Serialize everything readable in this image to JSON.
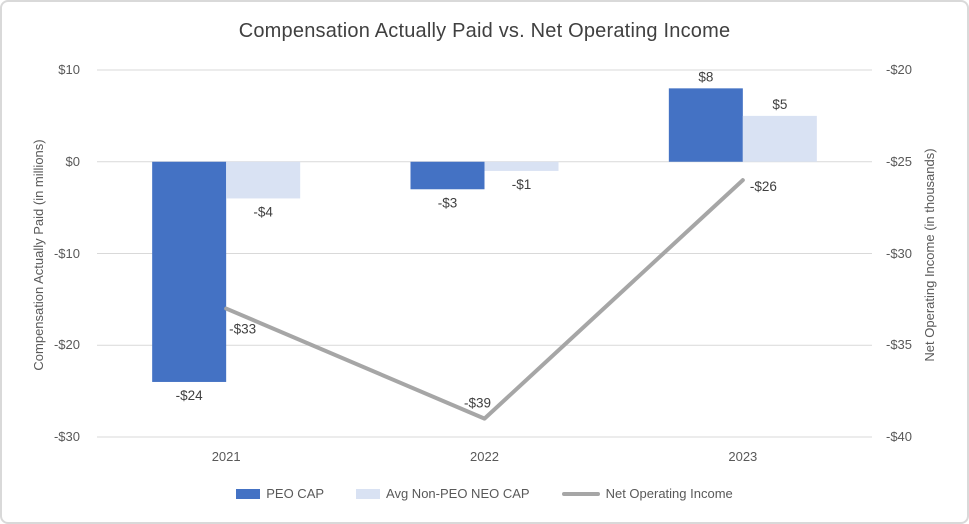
{
  "chart_data": {
    "type": "combo-bar-line",
    "title": "Compensation Actually Paid vs. Net Operating Income",
    "categories": [
      "2021",
      "2022",
      "2023"
    ],
    "bar_series": [
      {
        "name": "PEO CAP",
        "color": "#4472C4",
        "values": [
          -24,
          -3,
          8
        ],
        "labels": [
          "-$24",
          "-$3",
          "$8"
        ],
        "axis": "left"
      },
      {
        "name": "Avg Non-PEO NEO CAP",
        "color": "#D9E2F3",
        "values": [
          -4,
          -1,
          5
        ],
        "labels": [
          "-$4",
          "-$1",
          "$5"
        ],
        "axis": "left"
      }
    ],
    "line_series": {
      "name": "Net Operating Income",
      "color": "#A6A6A6",
      "values": [
        -33,
        -39,
        -26
      ],
      "labels": [
        "-$33",
        "-$39",
        "-$26"
      ],
      "axis": "right"
    },
    "left_axis": {
      "title": "Compensation Actually Paid (in millions)",
      "min": -30,
      "max": 10,
      "ticks": [
        {
          "value": 10,
          "label": "$10"
        },
        {
          "value": 0,
          "label": "$0"
        },
        {
          "value": -10,
          "label": "-$10"
        },
        {
          "value": -20,
          "label": "-$20"
        },
        {
          "value": -30,
          "label": "-$30"
        }
      ]
    },
    "right_axis": {
      "title": "Net Operating Income (in thousands)",
      "min": -40,
      "max": -20,
      "ticks": [
        {
          "value": -20,
          "label": "-$20"
        },
        {
          "value": -25,
          "label": "-$25"
        },
        {
          "value": -30,
          "label": "-$30"
        },
        {
          "value": -35,
          "label": "-$35"
        },
        {
          "value": -40,
          "label": "-$40"
        }
      ]
    },
    "legend": [
      {
        "label": "PEO CAP",
        "marker": "bar",
        "color": "#4472C4"
      },
      {
        "label": "Avg Non-PEO NEO CAP",
        "marker": "bar",
        "color": "#D9E2F3"
      },
      {
        "label": "Net Operating Income",
        "marker": "line",
        "color": "#A6A6A6"
      }
    ],
    "grid": true,
    "legend_position": "bottom",
    "colors": {
      "grid": "#D9D9D9",
      "title_text": "#404040",
      "axis_text": "#595959",
      "data_label_text": "#404040",
      "background": "#FFFFFF",
      "frame_border": "#D9D9D9"
    }
  }
}
